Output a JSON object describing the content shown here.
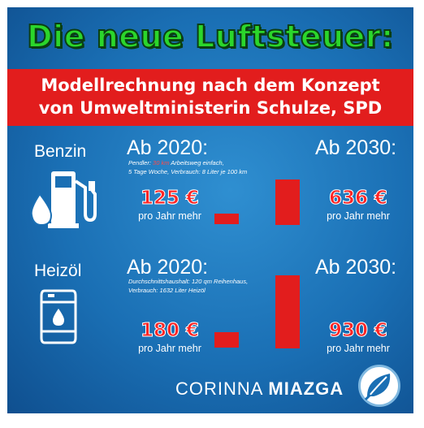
{
  "headline": "Die neue Luftsteuer:",
  "subtitle": {
    "line1": "Modellrechnung nach dem Konzept",
    "line2": "von Umweltministerin Schulze, SPD"
  },
  "sections": {
    "benzin": {
      "label": "Benzin",
      "period_2020": "Ab 2020:",
      "period_2030": "Ab 2030:",
      "note_prefix": "Pendler: ",
      "note_highlight": "30 km",
      "note_rest": " Arbeitsweg einfach,",
      "note_line2": "5 Tage Woche, Verbrauch: 8 Liter je 100 km",
      "value_2020": "125 €",
      "value_2030": "636 €",
      "unit_2020": "pro Jahr mehr",
      "unit_2030": "pro Jahr mehr"
    },
    "heizoel": {
      "label": "Heizöl",
      "period_2020": "Ab 2020:",
      "period_2030": "Ab 2030:",
      "note_line1": "Durchschnittshaushalt: 120 qm Reihenhaus,",
      "note_line2": "Verbrauch: 1632 Liter Heizöl",
      "value_2020": "180 €",
      "value_2030": "930 €",
      "unit_2020": "pro Jahr mehr",
      "unit_2030": "pro Jahr mehr"
    }
  },
  "footer": {
    "first_name": "CORINNA",
    "last_name": "MIAZGA"
  },
  "colors": {
    "background": "#1a6fb4",
    "headline": "#2bd62b",
    "accent_red": "#e21d1d",
    "text": "#ffffff"
  },
  "icons": [
    "fuel-pump-icon",
    "oil-barrel-icon",
    "leaf-logo-icon"
  ]
}
